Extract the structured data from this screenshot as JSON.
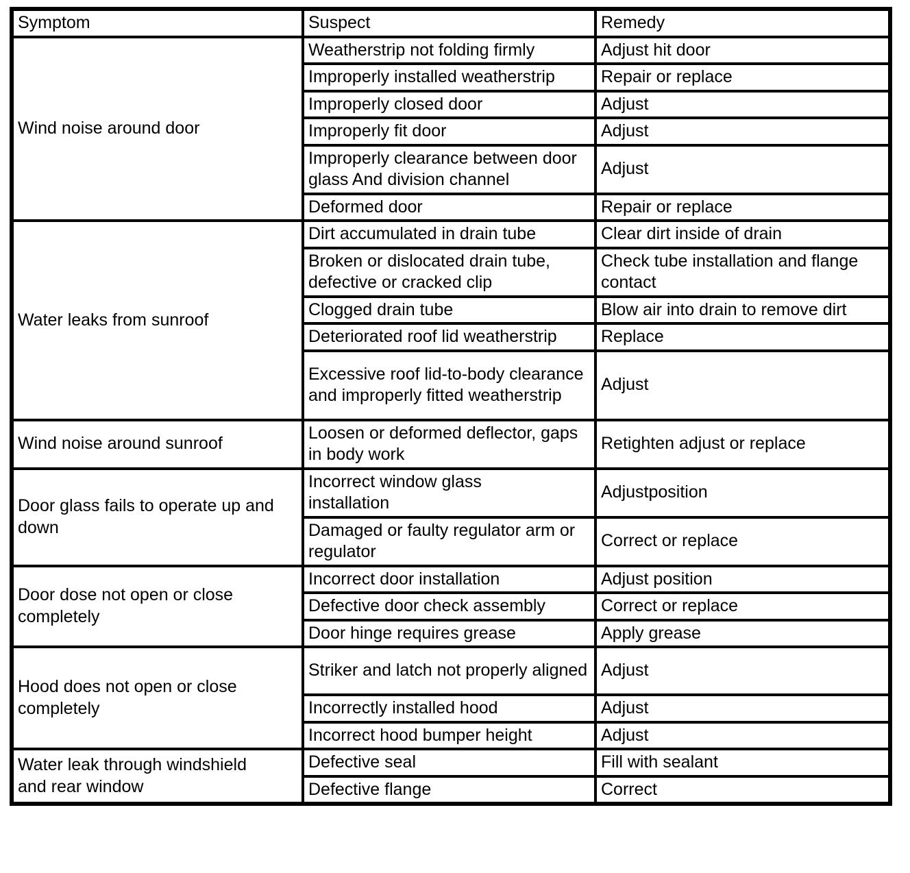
{
  "table": {
    "headers": [
      "Symptom",
      "Suspect",
      "Remedy"
    ],
    "groups": [
      {
        "symptom": "Wind noise around door",
        "rows": [
          {
            "suspect": "Weatherstrip not folding firmly",
            "remedy": "Adjust hit door"
          },
          {
            "suspect": "Improperly installed weatherstrip",
            "remedy": "Repair or replace"
          },
          {
            "suspect": "Improperly closed door",
            "remedy": "Adjust"
          },
          {
            "suspect": "Improperly fit door",
            "remedy": "Adjust"
          },
          {
            "suspect": "Improperly clearance between door glass And division channel",
            "remedy": "Adjust"
          },
          {
            "suspect": "Deformed door",
            "remedy": "Repair or replace"
          }
        ]
      },
      {
        "symptom": "Water leaks from sunroof",
        "rows": [
          {
            "suspect": "Dirt accumulated in drain tube",
            "remedy": "Clear dirt inside of drain"
          },
          {
            "suspect": "Broken or dislocated drain tube, defective or cracked clip",
            "remedy": "Check tube installation and flange contact"
          },
          {
            "suspect": "Clogged drain tube",
            "remedy": "Blow air into drain to remove dirt"
          },
          {
            "suspect": "Deteriorated roof lid weatherstrip",
            "remedy": "Replace"
          },
          {
            "suspect": "Excessive roof lid-to-body clearance and improperly fitted weatherstrip",
            "remedy": "Adjust"
          }
        ]
      },
      {
        "symptom": "Wind noise around sunroof",
        "rows": [
          {
            "suspect": "Loosen or deformed deflector, gaps in body work",
            "remedy": "Retighten adjust or replace"
          }
        ]
      },
      {
        "symptom": "Door glass fails to operate up and down",
        "rows": [
          {
            "suspect": "Incorrect window glass installation",
            "remedy": "Adjustposition"
          },
          {
            "suspect": "Damaged or faulty regulator arm or regulator",
            "remedy": "Correct or replace"
          }
        ]
      },
      {
        "symptom": "Door dose not open or close completely",
        "rows": [
          {
            "suspect": "Incorrect door installation",
            "remedy": "Adjust position"
          },
          {
            "suspect": "Defective door check assembly",
            "remedy": "Correct or replace"
          },
          {
            "suspect": "Door hinge requires grease",
            "remedy": "Apply grease"
          }
        ]
      },
      {
        "symptom": "Hood does not open or close completely",
        "rows": [
          {
            "suspect": "Striker and latch not properly aligned",
            "remedy": "Adjust"
          },
          {
            "suspect": "Incorrectly installed hood",
            "remedy": "Adjust"
          },
          {
            "suspect": "Incorrect hood bumper height",
            "remedy": "Adjust"
          }
        ]
      },
      {
        "symptom": "Water leak through windshield and rear window",
        "rows": [
          {
            "suspect": "Defective seal",
            "remedy": "Fill with sealant"
          },
          {
            "suspect": "Defective flange",
            "remedy": "Correct"
          }
        ]
      }
    ]
  }
}
